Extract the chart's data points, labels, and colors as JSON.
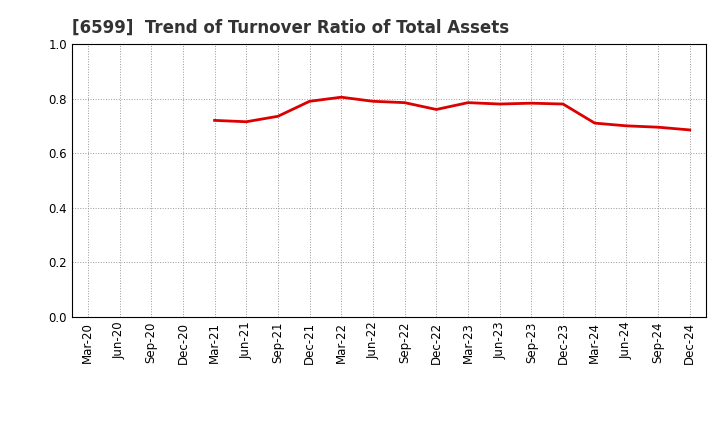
{
  "title": "[6599]  Trend of Turnover Ratio of Total Assets",
  "x_labels": [
    "Mar-20",
    "Jun-20",
    "Sep-20",
    "Dec-20",
    "Mar-21",
    "Jun-21",
    "Sep-21",
    "Dec-21",
    "Mar-22",
    "Jun-22",
    "Sep-22",
    "Dec-22",
    "Mar-23",
    "Jun-23",
    "Sep-23",
    "Dec-23",
    "Mar-24",
    "Jun-24",
    "Sep-24",
    "Dec-24"
  ],
  "y_values": [
    null,
    null,
    null,
    null,
    0.72,
    0.715,
    0.735,
    0.79,
    0.805,
    0.79,
    0.785,
    0.76,
    0.785,
    0.78,
    0.783,
    0.78,
    0.71,
    0.7,
    0.695,
    0.685
  ],
  "line_color": "#dd0000",
  "line_width": 2.0,
  "ylim": [
    0.0,
    1.0
  ],
  "yticks": [
    0.0,
    0.2,
    0.4,
    0.6,
    0.8,
    1.0
  ],
  "grid_color": "#999999",
  "background_color": "#ffffff",
  "title_fontsize": 12,
  "tick_fontsize": 8.5
}
